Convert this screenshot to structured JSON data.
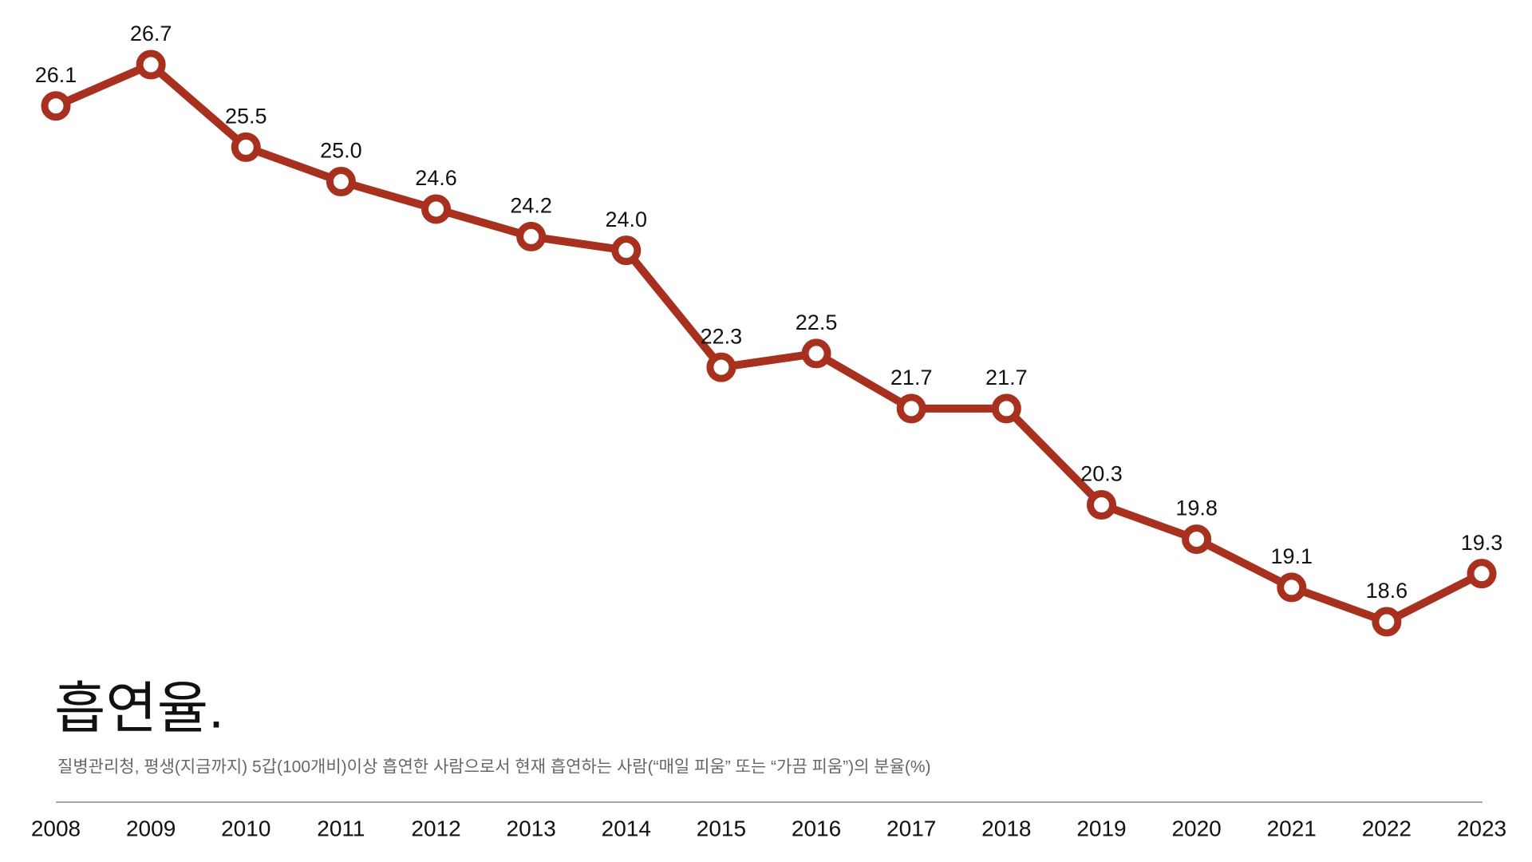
{
  "chart_data": {
    "type": "line",
    "title": "흡연율.",
    "subtitle": "질병관리청, 평생(지금까지) 5갑(100개비)이상 흡연한 사람으로서 현재 흡연하는 사람(“매일 피움” 또는 “가끔 피움”)의 분율(%)",
    "x": [
      2008,
      2009,
      2010,
      2011,
      2012,
      2013,
      2014,
      2015,
      2016,
      2017,
      2018,
      2019,
      2020,
      2021,
      2022,
      2023
    ],
    "series": [
      {
        "name": "흡연율",
        "color": "#a8301f",
        "values": [
          26.1,
          26.7,
          25.5,
          25.0,
          24.6,
          24.2,
          24.0,
          22.3,
          22.5,
          21.7,
          21.7,
          20.3,
          19.8,
          19.1,
          18.6,
          19.3
        ],
        "value_labels": [
          "26.1",
          "26.7",
          "25.5",
          "25.0",
          "24.6",
          "24.2",
          "24.0",
          "22.3",
          "22.5",
          "21.7",
          "21.7",
          "20.3",
          "19.8",
          "19.1",
          "18.6",
          "19.3"
        ]
      }
    ]
  }
}
